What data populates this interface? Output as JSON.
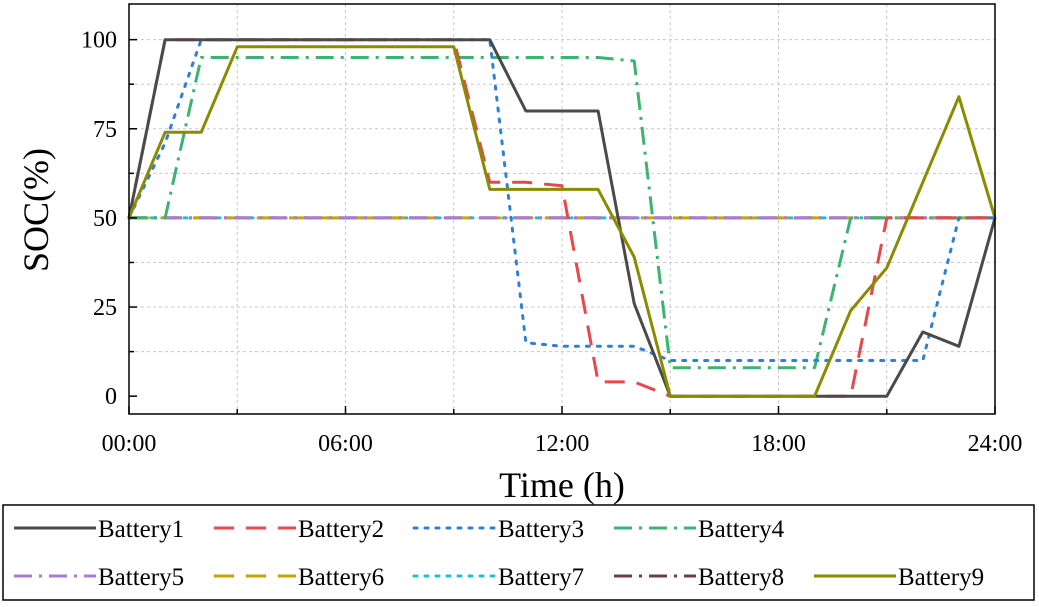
{
  "chart_data": {
    "type": "line",
    "title": "",
    "xlabel": "Time (h)",
    "ylabel": "SOC(%)",
    "xlim": [
      0,
      24
    ],
    "ylim": [
      -5,
      110
    ],
    "grid": true,
    "x_ticks": [
      {
        "value": 0,
        "label": "00:00"
      },
      {
        "value": 6,
        "label": "06:00"
      },
      {
        "value": 12,
        "label": "12:00"
      },
      {
        "value": 18,
        "label": "18:00"
      },
      {
        "value": 24,
        "label": "24:00"
      }
    ],
    "y_ticks": [
      {
        "value": 0,
        "label": "0"
      },
      {
        "value": 25,
        "label": "25"
      },
      {
        "value": 50,
        "label": "50"
      },
      {
        "value": 75,
        "label": "75"
      },
      {
        "value": 100,
        "label": "100"
      }
    ],
    "legend_position": "bottom",
    "series": [
      {
        "name": "Battery1",
        "color": "#4a4a4a",
        "dash": "solid",
        "x": [
          0,
          1,
          10,
          11,
          13,
          14,
          15,
          16,
          17,
          18,
          19,
          20,
          21,
          22,
          23,
          24
        ],
        "y": [
          50,
          100,
          100,
          80,
          80,
          26,
          0,
          0,
          0,
          0,
          0,
          0,
          0,
          18,
          14,
          50
        ]
      },
      {
        "name": "Battery2",
        "color": "#e8474c",
        "dash": "dash",
        "x": [
          0,
          1,
          9,
          10,
          11,
          12,
          13,
          14,
          15,
          16,
          17,
          18,
          19,
          20,
          21,
          24
        ],
        "y": [
          50,
          100,
          100,
          60,
          60,
          59,
          4,
          4,
          0,
          0,
          0,
          0,
          0,
          0,
          50,
          50
        ]
      },
      {
        "name": "Battery3",
        "color": "#2f7ed8",
        "dash": "dot",
        "x": [
          0,
          1,
          2,
          10,
          11,
          12,
          13,
          14,
          15,
          16,
          17,
          18,
          19,
          20,
          21,
          22,
          23,
          24
        ],
        "y": [
          50,
          71,
          100,
          100,
          15,
          14,
          14,
          14,
          10,
          10,
          10,
          10,
          10,
          10,
          10,
          10,
          50,
          50
        ]
      },
      {
        "name": "Battery4",
        "color": "#3cb371",
        "dash": "dashdot",
        "x": [
          0,
          1,
          2,
          3,
          4,
          5,
          6,
          7,
          8,
          9,
          10,
          11,
          12,
          13,
          14,
          15,
          16,
          17,
          18,
          19,
          20,
          21,
          22,
          23,
          24
        ],
        "y": [
          50,
          50,
          95,
          95,
          95,
          95,
          95,
          95,
          95,
          95,
          95,
          95,
          95,
          95,
          94,
          8,
          8,
          8,
          8,
          8,
          50,
          50,
          50,
          50,
          50
        ]
      },
      {
        "name": "Battery5",
        "color": "#a97ad6",
        "dash": "dashdot",
        "x": [
          0,
          24
        ],
        "y": [
          50,
          50
        ]
      },
      {
        "name": "Battery6",
        "color": "#c9a400",
        "dash": "dash",
        "x": [
          0,
          24
        ],
        "y": [
          50,
          50
        ]
      },
      {
        "name": "Battery7",
        "color": "#17c2d6",
        "dash": "dot",
        "x": [
          0,
          24
        ],
        "y": [
          50,
          50
        ]
      },
      {
        "name": "Battery8",
        "color": "#6b3f3f",
        "dash": "dashdot",
        "x": [
          0,
          24
        ],
        "y": [
          50,
          50
        ]
      },
      {
        "name": "Battery9",
        "color": "#8b8b00",
        "dash": "solid",
        "x": [
          0,
          1,
          2,
          3,
          9,
          10,
          11,
          12,
          13,
          14,
          15,
          16,
          17,
          18,
          19,
          20,
          21,
          22,
          23,
          24
        ],
        "y": [
          50,
          74,
          74,
          98,
          98,
          58,
          58,
          58,
          58,
          39,
          0,
          0,
          0,
          0,
          0,
          24,
          36,
          60,
          84,
          50
        ]
      }
    ]
  }
}
